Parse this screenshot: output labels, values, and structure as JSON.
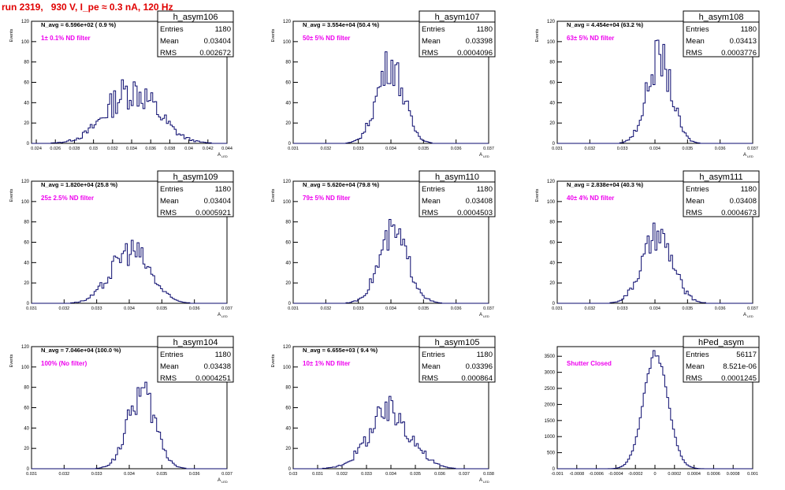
{
  "canvas_title": "run 2319,   930 V, I_pe ≈ 0.3 nA, 120 Hz",
  "colors": {
    "histogram": "#0a0a6e",
    "annotation": "#ee00ee",
    "run_title": "#e00000",
    "axis": "#000000"
  },
  "chart_data": [
    {
      "type": "histogram",
      "name": "h_asym106",
      "stats": {
        "Entries": "1180",
        "Mean": "0.03404",
        "RMS": "0.002672"
      },
      "navg": "N_avg = 6.596e+02 ( 0.9 %)",
      "filter": "1± 0.1% ND filter",
      "ylabel": "Events",
      "xlabel": "A",
      "xlabel_sub": "LED",
      "xlim": [
        0.0235,
        0.044
      ],
      "ylim": [
        0,
        120
      ],
      "xticks": [
        0.024,
        0.026,
        0.028,
        0.03,
        0.032,
        0.034,
        0.036,
        0.038,
        0.04,
        0.042,
        0.044
      ],
      "xtick_labels": [
        "0.024",
        "0.026",
        "0.028",
        "0.03",
        "0.032",
        "0.034",
        "0.036",
        "0.038",
        "0.04",
        "0.042",
        "0.044"
      ],
      "yticks": [
        0,
        20,
        40,
        60,
        80,
        100,
        120
      ],
      "ytick_labels": [
        "0",
        "20",
        "40",
        "60",
        "80",
        "100",
        "120"
      ],
      "peak": 52,
      "noise": 0.35
    },
    {
      "type": "histogram",
      "name": "h_asym107",
      "stats": {
        "Entries": "1180",
        "Mean": "0.03398",
        "RMS": "0.0004096"
      },
      "navg": "N_avg = 3.554e+04 (50.4 %)",
      "filter": "50± 5% ND filter",
      "ylabel": "Events",
      "xlabel": "A",
      "xlabel_sub": "LED",
      "xlim": [
        0.031,
        0.037
      ],
      "ylim": [
        0,
        120
      ],
      "xticks": [
        0.031,
        0.032,
        0.033,
        0.034,
        0.035,
        0.036,
        0.037
      ],
      "xtick_labels": [
        "0.031",
        "0.032",
        "0.033",
        "0.034",
        "0.035",
        "0.036",
        "0.037"
      ],
      "yticks": [
        0,
        20,
        40,
        60,
        80,
        100,
        120
      ],
      "ytick_labels": [
        "0",
        "20",
        "40",
        "60",
        "80",
        "100",
        "120"
      ],
      "peak": 78,
      "noise": 0.25
    },
    {
      "type": "histogram",
      "name": "h_asym108",
      "stats": {
        "Entries": "1180",
        "Mean": "0.03413",
        "RMS": "0.0003776"
      },
      "navg": "N_avg = 4.454e+04 (63.2 %)",
      "filter": "63± 5% ND filter",
      "ylabel": "Events",
      "xlabel": "A",
      "xlabel_sub": "LED",
      "xlim": [
        0.031,
        0.037
      ],
      "ylim": [
        0,
        120
      ],
      "xticks": [
        0.031,
        0.032,
        0.033,
        0.034,
        0.035,
        0.036,
        0.037
      ],
      "xtick_labels": [
        "0.031",
        "0.032",
        "0.033",
        "0.034",
        "0.035",
        "0.036",
        "0.037"
      ],
      "yticks": [
        0,
        20,
        40,
        60,
        80,
        100,
        120
      ],
      "ytick_labels": [
        "0",
        "20",
        "40",
        "60",
        "80",
        "100",
        "120"
      ],
      "peak": 84,
      "noise": 0.25
    },
    {
      "type": "histogram",
      "name": "h_asym109",
      "stats": {
        "Entries": "1180",
        "Mean": "0.03404",
        "RMS": "0.0005921"
      },
      "navg": "N_avg = 1.820e+04 (25.8 %)",
      "filter": "25± 2.5% ND filter",
      "ylabel": "Events",
      "xlabel": "A",
      "xlabel_sub": "LED",
      "xlim": [
        0.031,
        0.037
      ],
      "ylim": [
        0,
        120
      ],
      "xticks": [
        0.031,
        0.032,
        0.033,
        0.034,
        0.035,
        0.036,
        0.037
      ],
      "xtick_labels": [
        "0.031",
        "0.032",
        "0.033",
        "0.034",
        "0.035",
        "0.036",
        "0.037"
      ],
      "yticks": [
        0,
        20,
        40,
        60,
        80,
        100,
        120
      ],
      "ytick_labels": [
        "0",
        "20",
        "40",
        "60",
        "80",
        "100",
        "120"
      ],
      "peak": 52,
      "noise": 0.28
    },
    {
      "type": "histogram",
      "name": "h_asym110",
      "stats": {
        "Entries": "1180",
        "Mean": "0.03408",
        "RMS": "0.0004503"
      },
      "navg": "N_avg = 5.620e+04 (79.8 %)",
      "filter": "79± 5% ND filter",
      "ylabel": "Events",
      "xlabel": "A",
      "xlabel_sub": "LED",
      "xlim": [
        0.031,
        0.037
      ],
      "ylim": [
        0,
        120
      ],
      "xticks": [
        0.031,
        0.032,
        0.033,
        0.034,
        0.035,
        0.036,
        0.037
      ],
      "xtick_labels": [
        "0.031",
        "0.032",
        "0.033",
        "0.034",
        "0.035",
        "0.036",
        "0.037"
      ],
      "yticks": [
        0,
        20,
        40,
        60,
        80,
        100,
        120
      ],
      "ytick_labels": [
        "0",
        "20",
        "40",
        "60",
        "80",
        "100",
        "120"
      ],
      "peak": 68,
      "noise": 0.25
    },
    {
      "type": "histogram",
      "name": "h_asym111",
      "stats": {
        "Entries": "1180",
        "Mean": "0.03408",
        "RMS": "0.0004673"
      },
      "navg": "N_avg = 2.838e+04 (40.3 %)",
      "filter": "40± 4% ND filter",
      "ylabel": "Events",
      "xlabel": "A",
      "xlabel_sub": "LED",
      "xlim": [
        0.031,
        0.037
      ],
      "ylim": [
        0,
        120
      ],
      "xticks": [
        0.031,
        0.032,
        0.033,
        0.034,
        0.035,
        0.036,
        0.037
      ],
      "xtick_labels": [
        "0.031",
        "0.032",
        "0.033",
        "0.034",
        "0.035",
        "0.036",
        "0.037"
      ],
      "yticks": [
        0,
        20,
        40,
        60,
        80,
        100,
        120
      ],
      "ytick_labels": [
        "0",
        "20",
        "40",
        "60",
        "80",
        "100",
        "120"
      ],
      "peak": 65,
      "noise": 0.25
    },
    {
      "type": "histogram",
      "name": "h_asym104",
      "stats": {
        "Entries": "1180",
        "Mean": "0.03438",
        "RMS": "0.0004251"
      },
      "navg": "N_avg = 7.046e+04 (100.0 %)",
      "filter": "100% (No filter)",
      "ylabel": "Events",
      "xlabel": "A",
      "xlabel_sub": "LED",
      "xlim": [
        0.031,
        0.037
      ],
      "ylim": [
        0,
        120
      ],
      "xticks": [
        0.031,
        0.032,
        0.033,
        0.034,
        0.035,
        0.036,
        0.037
      ],
      "xtick_labels": [
        "0.031",
        "0.032",
        "0.033",
        "0.034",
        "0.035",
        "0.036",
        "0.037"
      ],
      "yticks": [
        0,
        20,
        40,
        60,
        80,
        100,
        120
      ],
      "ytick_labels": [
        "0",
        "20",
        "40",
        "60",
        "80",
        "100",
        "120"
      ],
      "peak": 74,
      "noise": 0.25
    },
    {
      "type": "histogram",
      "name": "h_asym105",
      "stats": {
        "Entries": "1180",
        "Mean": "0.03396",
        "RMS": "0.000864"
      },
      "navg": "N_avg = 6.655e+03 ( 9.4 %)",
      "filter": "10± 1% ND filter",
      "ylabel": "Events",
      "xlabel": "A",
      "xlabel_sub": "LED",
      "xlim": [
        0.03,
        0.038
      ],
      "ylim": [
        0,
        120
      ],
      "xticks": [
        0.03,
        0.031,
        0.032,
        0.033,
        0.034,
        0.035,
        0.036,
        0.037,
        0.038
      ],
      "xtick_labels": [
        "0.03",
        "0.031",
        "0.032",
        "0.033",
        "0.034",
        "0.035",
        "0.036",
        "0.037",
        "0.038"
      ],
      "yticks": [
        0,
        20,
        40,
        60,
        80,
        100,
        120
      ],
      "ytick_labels": [
        "0",
        "20",
        "40",
        "60",
        "80",
        "100",
        "120"
      ],
      "peak": 55,
      "noise": 0.3
    },
    {
      "type": "histogram",
      "name": "hPed_asym",
      "stats": {
        "Entries": "56117",
        "Mean": "8.521e-06",
        "RMS": "0.0001245"
      },
      "navg": "",
      "filter": "Shutter Closed",
      "ylabel": "",
      "xlabel": "",
      "xlabel_sub": "",
      "xlim": [
        -0.001,
        0.001
      ],
      "ylim": [
        0,
        3800
      ],
      "xticks": [
        -0.001,
        -0.0008,
        -0.0006,
        -0.0004,
        -0.0002,
        0,
        0.0002,
        0.0004,
        0.0006,
        0.0008,
        0.001
      ],
      "xtick_labels": [
        "-0.001",
        "-0.0008",
        "-0.0006",
        "-0.0004",
        "-0.0002",
        "0",
        "0.0002",
        "0.0004",
        "0.0006",
        "0.0008",
        "0.001"
      ],
      "yticks": [
        0,
        500,
        1000,
        1500,
        2000,
        2500,
        3000,
        3500
      ],
      "ytick_labels": [
        "0",
        "500",
        "1000",
        "1500",
        "2000",
        "2500",
        "3000",
        "3500"
      ],
      "peak": 3580,
      "noise": 0.04
    }
  ]
}
